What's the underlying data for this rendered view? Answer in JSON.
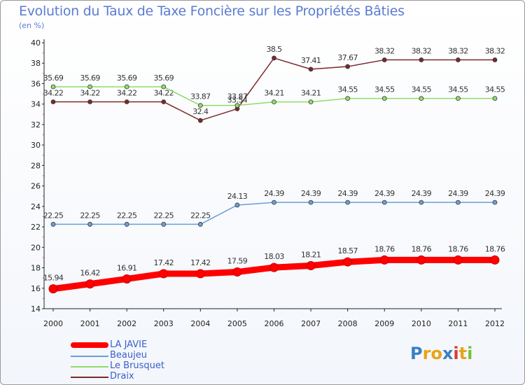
{
  "chart_data": {
    "type": "line",
    "title": "Evolution du Taux de Taxe Foncière sur les Propriétés Bâties",
    "unit": "(en %)",
    "xlabel": "",
    "ylabel": "(en %)",
    "ylim": [
      14,
      40
    ],
    "yticks": [
      14,
      16,
      18,
      20,
      22,
      24,
      26,
      28,
      30,
      32,
      34,
      36,
      38,
      40
    ],
    "x": [
      "2000",
      "2001",
      "2002",
      "2003",
      "2004",
      "2005",
      "2006",
      "2007",
      "2008",
      "2009",
      "2010",
      "2011",
      "2012"
    ],
    "series": [
      {
        "name": "LA JAVIE",
        "color": "#ff0000",
        "values": [
          15.94,
          16.42,
          16.91,
          17.42,
          17.42,
          17.59,
          18.03,
          18.21,
          18.57,
          18.76,
          18.76,
          18.76,
          18.76
        ],
        "labels": [
          "15.94",
          "16.42",
          "16.91",
          "17.42",
          "17.42",
          "17.59",
          "18.03",
          "18.21",
          "18.57",
          "18.76",
          "18.76",
          "18.76",
          "18.76"
        ]
      },
      {
        "name": "Beaujeu",
        "color": "#6c9ed8",
        "values": [
          22.25,
          22.25,
          22.25,
          22.25,
          22.25,
          24.13,
          24.39,
          24.39,
          24.39,
          24.39,
          24.39,
          24.39,
          24.39
        ],
        "labels": [
          "22.25",
          "22.25",
          "22.25",
          "22.25",
          "22.25",
          "24.13",
          "24.39",
          "24.39",
          "24.39",
          "24.39",
          "24.39",
          "24.39",
          "24.39"
        ]
      },
      {
        "name": "Le Brusquet",
        "color": "#8fdc6a",
        "values": [
          35.69,
          35.69,
          35.69,
          35.69,
          33.87,
          33.87,
          34.21,
          34.21,
          34.55,
          34.55,
          34.55,
          34.55,
          34.55
        ],
        "labels": [
          "35.69",
          "35.69",
          "35.69",
          "35.69",
          "33.87",
          "33.87",
          "34.21",
          "34.21",
          "34.55",
          "34.55",
          "34.55",
          "34.55",
          "34.55"
        ]
      },
      {
        "name": "Draix",
        "color": "#7a2a2a",
        "values": [
          34.22,
          34.22,
          34.22,
          34.22,
          32.4,
          33.54,
          38.5,
          37.41,
          37.67,
          38.32,
          38.32,
          38.32,
          38.32
        ],
        "labels": [
          "34.22",
          "34.22",
          "34.22",
          "34.22",
          "32.4",
          "33.54",
          "38.5",
          "37.41",
          "37.67",
          "38.32",
          "38.32",
          "38.32",
          "38.32"
        ]
      }
    ],
    "legend_position": "bottom-left",
    "grid": false
  },
  "logo": {
    "letters": [
      "P",
      "r",
      "o",
      "x",
      "i",
      "t",
      "i"
    ],
    "colors": [
      "#3a7fc4",
      "#e8a319",
      "#e8a319",
      "#3a7fc4",
      "#d93a3a",
      "#e8a319",
      "#7bbf3a"
    ]
  }
}
